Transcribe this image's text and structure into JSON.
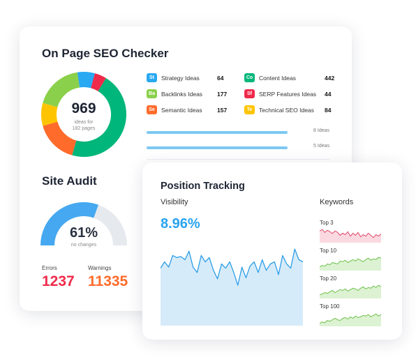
{
  "seo": {
    "title": "On Page SEO Checker",
    "total": "969",
    "total_sub1": "ideas for",
    "total_sub2": "182 pages",
    "donut_colors": [
      "#00b67a",
      "#ff6b2b",
      "#ffc400",
      "#8bd04b",
      "#29a9f1",
      "#ef2a4a"
    ],
    "ideas": [
      {
        "badge": "St",
        "color": "#29a9f1",
        "label": "Strategy Ideas",
        "count": "64"
      },
      {
        "badge": "Ba",
        "color": "#8bd04b",
        "label": "Backlinks Ideas",
        "count": "177"
      },
      {
        "badge": "Se",
        "color": "#ff6b2b",
        "label": "Semantic Ideas",
        "count": "157"
      },
      {
        "badge": "Co",
        "color": "#00b67a",
        "label": "Content Ideas",
        "count": "442"
      },
      {
        "badge": "Sf",
        "color": "#ef2a4a",
        "label": "SERP Features Ideas",
        "count": "44"
      },
      {
        "badge": "Te",
        "color": "#ffc400",
        "label": "Technical SEO Ideas",
        "count": "84"
      }
    ],
    "bars": [
      {
        "label": "8 Ideas"
      },
      {
        "label": "5 Ideas"
      }
    ]
  },
  "audit": {
    "title": "Site Audit",
    "percent": "61%",
    "percent_sub": "no changes",
    "gauge_fraction": 0.61,
    "errors_label": "Errors",
    "errors_value": "1237",
    "warnings_label": "Warnings",
    "warnings_value": "11335",
    "colors": {
      "gauge": "#45a8f0",
      "track": "#e6e9ee",
      "errors": "#ef2a4a",
      "warnings": "#ff6b2b"
    }
  },
  "tracking": {
    "title": "Position Tracking",
    "visibility_label": "Visibility",
    "visibility_value": "8.96%",
    "visibility_series": [
      54,
      60,
      55,
      66,
      64,
      65,
      62,
      70,
      55,
      50,
      66,
      60,
      64,
      52,
      44,
      58,
      54,
      60,
      50,
      38,
      55,
      45,
      56,
      60,
      50,
      62,
      52,
      58,
      60,
      48,
      66,
      58,
      54,
      72,
      62,
      60
    ],
    "keywords_title": "Keywords",
    "keywords": [
      {
        "label": "Top 3",
        "color": "#e0496a",
        "fill": "#fbd9e0",
        "series": [
          62,
          66,
          58,
          64,
          60,
          55,
          62,
          58,
          50,
          56,
          52,
          60,
          48,
          56,
          50,
          58,
          46,
          52,
          48,
          56,
          50,
          44,
          52,
          48,
          54
        ]
      },
      {
        "label": "Top 10",
        "color": "#6cc04a",
        "fill": "#dcf2d2",
        "series": [
          40,
          44,
          42,
          48,
          46,
          52,
          50,
          48,
          56,
          54,
          58,
          52,
          56,
          60,
          56,
          62,
          58,
          54,
          60,
          64,
          58,
          62,
          60,
          66,
          64
        ]
      },
      {
        "label": "Top 20",
        "color": "#6cc04a",
        "fill": "#dcf2d2",
        "series": [
          40,
          42,
          46,
          44,
          48,
          52,
          46,
          50,
          54,
          52,
          56,
          50,
          54,
          58,
          56,
          52,
          58,
          62,
          56,
          60,
          58,
          64,
          60,
          66,
          62
        ]
      },
      {
        "label": "Top 100",
        "color": "#6cc04a",
        "fill": "#dcf2d2",
        "series": [
          38,
          42,
          40,
          46,
          44,
          48,
          52,
          48,
          46,
          52,
          54,
          50,
          56,
          52,
          58,
          54,
          56,
          60,
          58,
          62,
          56,
          60,
          64,
          58,
          62
        ]
      }
    ]
  }
}
